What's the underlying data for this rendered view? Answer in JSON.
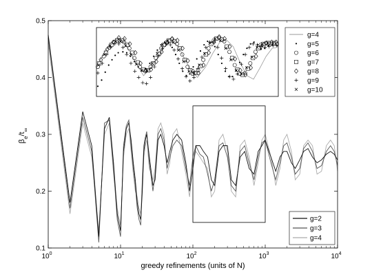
{
  "chart_data": {
    "type": "line",
    "title": "",
    "xlabel": "greedy refinements (units of N)",
    "ylabel": "β_e/t_∞",
    "ylabel_parts": {
      "base": "β",
      "sub1": "e",
      "mid": "/t",
      "sub2": "∞"
    },
    "x_scale": "log",
    "xlim": [
      1,
      10000
    ],
    "ylim": [
      0.1,
      0.5
    ],
    "grid": false,
    "legend_position": "bottom-right",
    "x_ticks": [
      1,
      10,
      100,
      1000,
      10000
    ],
    "x_tick_labels": [
      {
        "base": "10",
        "exp": "0"
      },
      {
        "base": "10",
        "exp": "1"
      },
      {
        "base": "10",
        "exp": "2"
      },
      {
        "base": "10",
        "exp": "3"
      },
      {
        "base": "10",
        "exp": "4"
      }
    ],
    "y_ticks": [
      "0.1",
      "0.2",
      "0.3",
      "0.4",
      "0.5"
    ],
    "series": [
      {
        "name": "g=2",
        "color": "#111111",
        "x": [
          1,
          2,
          3,
          4,
          5,
          6,
          7,
          8,
          9,
          10,
          11,
          12,
          13,
          14,
          15,
          16,
          17,
          18,
          19,
          20,
          21,
          22,
          23,
          25,
          28,
          30,
          33,
          36,
          40,
          44,
          48,
          53,
          60,
          70,
          80,
          90,
          100,
          110,
          125,
          140,
          160,
          180,
          200,
          230,
          260,
          300,
          340,
          390,
          450,
          520,
          600,
          700,
          800,
          900,
          1000,
          1200,
          1400,
          1600,
          1800,
          2000,
          2300,
          2600,
          3000,
          3400,
          3900,
          4500,
          5200,
          6000,
          7000,
          8000,
          9000,
          10000
        ],
        "y": [
          0.475,
          0.18,
          0.34,
          0.28,
          0.12,
          0.31,
          0.33,
          0.25,
          0.16,
          0.13,
          0.27,
          0.31,
          0.32,
          0.29,
          0.25,
          0.22,
          0.18,
          0.16,
          0.15,
          0.2,
          0.27,
          0.29,
          0.3,
          0.26,
          0.21,
          0.22,
          0.29,
          0.3,
          0.28,
          0.25,
          0.27,
          0.29,
          0.3,
          0.29,
          0.25,
          0.2,
          0.24,
          0.28,
          0.28,
          0.27,
          0.26,
          0.22,
          0.21,
          0.27,
          0.28,
          0.28,
          0.22,
          0.21,
          0.26,
          0.27,
          0.24,
          0.23,
          0.27,
          0.28,
          0.29,
          0.26,
          0.235,
          0.26,
          0.27,
          0.27,
          0.25,
          0.24,
          0.255,
          0.27,
          0.275,
          0.26,
          0.25,
          0.255,
          0.265,
          0.27,
          0.265,
          0.255
        ]
      },
      {
        "name": "g=3",
        "color": "#555555",
        "x": [
          1,
          2,
          3,
          4,
          5,
          6,
          7,
          8,
          9,
          10,
          11,
          12,
          13,
          14,
          15,
          16,
          17,
          18,
          19,
          20,
          21,
          22,
          23,
          25,
          28,
          30,
          33,
          36,
          40,
          44,
          48,
          53,
          60,
          70,
          80,
          90,
          100,
          110,
          125,
          140,
          160,
          180,
          200,
          230,
          260,
          300,
          340,
          390,
          450,
          520,
          600,
          700,
          800,
          900,
          1000,
          1200,
          1400,
          1600,
          1800,
          2000,
          2300,
          2600,
          3000,
          3400,
          3900,
          4500,
          5200,
          6000,
          7000,
          8000,
          9000,
          10000
        ],
        "y": [
          0.47,
          0.17,
          0.33,
          0.27,
          0.11,
          0.32,
          0.325,
          0.24,
          0.15,
          0.12,
          0.28,
          0.315,
          0.325,
          0.28,
          0.24,
          0.21,
          0.17,
          0.15,
          0.14,
          0.22,
          0.28,
          0.295,
          0.305,
          0.25,
          0.2,
          0.23,
          0.3,
          0.31,
          0.29,
          0.24,
          0.26,
          0.28,
          0.29,
          0.28,
          0.24,
          0.21,
          0.26,
          0.28,
          0.265,
          0.26,
          0.23,
          0.2,
          0.22,
          0.28,
          0.285,
          0.26,
          0.21,
          0.2,
          0.27,
          0.28,
          0.25,
          0.22,
          0.26,
          0.285,
          0.29,
          0.25,
          0.22,
          0.25,
          0.28,
          0.285,
          0.26,
          0.23,
          0.24,
          0.275,
          0.285,
          0.27,
          0.24,
          0.245,
          0.27,
          0.28,
          0.27,
          0.245
        ]
      },
      {
        "name": "g=4",
        "color": "#aaaaaa",
        "x": [
          1,
          2,
          3,
          4,
          5,
          6,
          7,
          8,
          9,
          10,
          11,
          12,
          13,
          14,
          15,
          16,
          17,
          18,
          19,
          20,
          21,
          22,
          23,
          25,
          28,
          30,
          33,
          36,
          40,
          44,
          48,
          53,
          60,
          70,
          80,
          90,
          100,
          110,
          125,
          140,
          160,
          180,
          200,
          230,
          260,
          300,
          340,
          390,
          450,
          520,
          600,
          700,
          800,
          900,
          1000,
          1200,
          1400,
          1600,
          1800,
          2000,
          2300,
          2600,
          3000,
          3400,
          3900,
          4500,
          5200,
          6000,
          7000,
          8000,
          9000,
          10000
        ],
        "y": [
          0.46,
          0.16,
          0.32,
          0.26,
          0.13,
          0.3,
          0.32,
          0.23,
          0.17,
          0.14,
          0.26,
          0.3,
          0.31,
          0.27,
          0.23,
          0.2,
          0.19,
          0.17,
          0.16,
          0.21,
          0.26,
          0.28,
          0.29,
          0.24,
          0.22,
          0.24,
          0.31,
          0.32,
          0.3,
          0.23,
          0.25,
          0.3,
          0.31,
          0.27,
          0.23,
          0.19,
          0.25,
          0.27,
          0.26,
          0.25,
          0.24,
          0.19,
          0.2,
          0.29,
          0.3,
          0.27,
          0.2,
          0.19,
          0.28,
          0.29,
          0.26,
          0.21,
          0.25,
          0.29,
          0.3,
          0.26,
          0.21,
          0.24,
          0.29,
          0.3,
          0.27,
          0.22,
          0.23,
          0.28,
          0.29,
          0.28,
          0.23,
          0.235,
          0.28,
          0.29,
          0.28,
          0.235
        ]
      }
    ],
    "legend": [
      {
        "label": "g=2",
        "style": "line",
        "color": "#111111"
      },
      {
        "label": "g=3",
        "style": "line",
        "color": "#555555"
      },
      {
        "label": "g=4",
        "style": "line",
        "color": "#aaaaaa"
      }
    ],
    "zoom_box_x": [
      100,
      1000
    ],
    "zoom_box_y": [
      0.145,
      0.35
    ],
    "inset": {
      "type": "scatter",
      "x_scale": "log",
      "xlim": [
        100,
        1000
      ],
      "ylim": [
        0.23,
        0.305
      ],
      "legend_position": "right",
      "legend": [
        {
          "label": "g=4",
          "marker": "line"
        },
        {
          "label": "g=5",
          "marker": "dot"
        },
        {
          "label": "g=6",
          "marker": "circle"
        },
        {
          "label": "g=7",
          "marker": "square"
        },
        {
          "label": "g=8",
          "marker": "diamond"
        },
        {
          "label": "g=9",
          "marker": "plus"
        },
        {
          "label": "g=10",
          "marker": "cross"
        }
      ],
      "series": [
        {
          "name": "g=4",
          "marker": "line",
          "x": [
            100,
            110,
            120,
            130,
            140,
            150,
            165,
            180,
            200,
            220,
            240,
            260,
            280,
            300,
            330,
            360,
            400,
            440,
            480,
            520,
            570,
            620,
            680,
            740,
            800,
            870,
            940,
            1000
          ],
          "y": [
            0.265,
            0.28,
            0.29,
            0.295,
            0.29,
            0.28,
            0.265,
            0.252,
            0.262,
            0.275,
            0.287,
            0.29,
            0.286,
            0.274,
            0.258,
            0.25,
            0.262,
            0.278,
            0.29,
            0.293,
            0.285,
            0.268,
            0.252,
            0.248,
            0.26,
            0.274,
            0.283,
            0.284
          ]
        },
        {
          "name": "g=5",
          "marker": "dot",
          "x": [
            100,
            105,
            110,
            115,
            120,
            125,
            130,
            138,
            145,
            152,
            160,
            168,
            176,
            185,
            195,
            205,
            215,
            225,
            236,
            248,
            260,
            272,
            285,
            298,
            312,
            326,
            341,
            357,
            374,
            392,
            410,
            430,
            450,
            470,
            492,
            515,
            540,
            565,
            592,
            620,
            650,
            680,
            712,
            745,
            780,
            815,
            855,
            895,
            940,
            1000
          ],
          "y": [
            0.24,
            0.247,
            0.256,
            0.264,
            0.27,
            0.275,
            0.278,
            0.279,
            0.278,
            0.274,
            0.268,
            0.262,
            0.258,
            0.26,
            0.266,
            0.274,
            0.281,
            0.287,
            0.29,
            0.289,
            0.284,
            0.276,
            0.266,
            0.257,
            0.252,
            0.254,
            0.262,
            0.271,
            0.28,
            0.287,
            0.291,
            0.29,
            0.285,
            0.276,
            0.266,
            0.257,
            0.251,
            0.251,
            0.258,
            0.267,
            0.276,
            0.283,
            0.288,
            0.29,
            0.287,
            0.282,
            0.283,
            0.286,
            0.287,
            0.286
          ]
        },
        {
          "name": "g=6",
          "marker": "circle",
          "x": [
            100,
            108,
            116,
            124,
            132,
            140,
            150,
            160,
            172,
            184,
            197,
            211,
            226,
            242,
            259,
            277,
            296,
            317,
            339,
            363,
            388,
            415,
            444,
            475,
            508,
            543,
            581,
            621,
            664,
            710,
            759,
            812,
            868,
            928,
            1000
          ],
          "y": [
            0.262,
            0.274,
            0.284,
            0.29,
            0.292,
            0.29,
            0.283,
            0.272,
            0.262,
            0.257,
            0.262,
            0.272,
            0.283,
            0.29,
            0.293,
            0.288,
            0.276,
            0.262,
            0.254,
            0.258,
            0.27,
            0.283,
            0.292,
            0.295,
            0.291,
            0.279,
            0.264,
            0.254,
            0.255,
            0.266,
            0.279,
            0.287,
            0.289,
            0.288,
            0.288
          ]
        },
        {
          "name": "g=7",
          "marker": "square",
          "x": [
            102,
            111,
            119,
            128,
            137,
            146,
            156,
            167,
            179,
            191,
            204,
            219,
            234,
            250,
            268,
            286,
            306,
            328,
            350,
            375,
            401,
            429,
            459,
            491,
            525,
            562,
            601,
            643,
            688,
            735,
            787,
            842,
            900,
            965
          ],
          "y": [
            0.266,
            0.278,
            0.287,
            0.292,
            0.292,
            0.287,
            0.278,
            0.267,
            0.259,
            0.258,
            0.266,
            0.277,
            0.287,
            0.292,
            0.291,
            0.283,
            0.27,
            0.258,
            0.255,
            0.263,
            0.276,
            0.288,
            0.294,
            0.293,
            0.285,
            0.272,
            0.259,
            0.253,
            0.26,
            0.272,
            0.283,
            0.288,
            0.289,
            0.289
          ]
        },
        {
          "name": "g=8",
          "marker": "diamond",
          "x": [
            104,
            113,
            122,
            131,
            141,
            151,
            162,
            173,
            185,
            198,
            212,
            227,
            243,
            260,
            278,
            297,
            318,
            340,
            364,
            389,
            416,
            445,
            476,
            510,
            545,
            583,
            624,
            667,
            714,
            764,
            817,
            874,
            935,
            990
          ],
          "y": [
            0.27,
            0.282,
            0.29,
            0.295,
            0.294,
            0.288,
            0.278,
            0.266,
            0.258,
            0.259,
            0.268,
            0.279,
            0.289,
            0.294,
            0.292,
            0.283,
            0.269,
            0.257,
            0.255,
            0.264,
            0.278,
            0.29,
            0.296,
            0.294,
            0.285,
            0.271,
            0.258,
            0.253,
            0.261,
            0.274,
            0.285,
            0.289,
            0.29,
            0.29
          ]
        },
        {
          "name": "g=9",
          "marker": "plus",
          "x": [
            100,
            106,
            112,
            118,
            124,
            131,
            138,
            145,
            153,
            161,
            169,
            178,
            187,
            197,
            207,
            218,
            229,
            241,
            254,
            267,
            281,
            296,
            311,
            327,
            344,
            362,
            381,
            401,
            422,
            444,
            467,
            491,
            517,
            544,
            572,
            602,
            633,
            666,
            701,
            737,
            776,
            816,
            859,
            903,
            950,
            1000
          ],
          "y": [
            0.255,
            0.266,
            0.276,
            0.284,
            0.288,
            0.288,
            0.284,
            0.276,
            0.266,
            0.257,
            0.25,
            0.244,
            0.243,
            0.25,
            0.262,
            0.274,
            0.283,
            0.288,
            0.287,
            0.281,
            0.271,
            0.26,
            0.251,
            0.246,
            0.25,
            0.26,
            0.273,
            0.284,
            0.29,
            0.29,
            0.284,
            0.272,
            0.26,
            0.251,
            0.248,
            0.254,
            0.265,
            0.276,
            0.284,
            0.288,
            0.287,
            0.285,
            0.284,
            0.285,
            0.286,
            0.286
          ]
        },
        {
          "name": "g=10",
          "marker": "cross",
          "x": [
            101,
            109,
            117,
            126,
            134,
            143,
            153,
            164,
            176,
            188,
            201,
            215,
            230,
            246,
            264,
            282,
            302,
            323,
            345,
            369,
            395,
            423,
            452,
            484,
            518,
            554,
            593,
            634,
            678,
            726,
            776,
            831,
            889,
            950
          ],
          "y": [
            0.264,
            0.276,
            0.286,
            0.291,
            0.291,
            0.286,
            0.276,
            0.265,
            0.258,
            0.258,
            0.266,
            0.277,
            0.287,
            0.292,
            0.29,
            0.281,
            0.268,
            0.257,
            0.255,
            0.264,
            0.277,
            0.289,
            0.294,
            0.292,
            0.283,
            0.27,
            0.258,
            0.254,
            0.261,
            0.273,
            0.284,
            0.288,
            0.289,
            0.289
          ]
        }
      ]
    }
  }
}
